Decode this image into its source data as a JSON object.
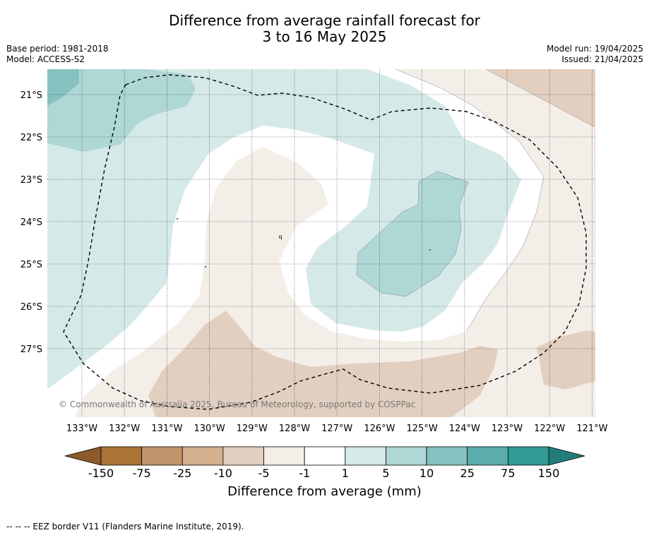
{
  "header": {
    "title_line1": "Difference from average rainfall forecast for",
    "title_line2": "3 to 16 May 2025",
    "base_period": "Base period: 1981-2018",
    "model": "Model: ACCESS-S2",
    "model_run": "Model run: 19/04/2025",
    "issued": "Issued: 21/04/2025"
  },
  "map": {
    "longitude_labels": [
      "133°W",
      "132°W",
      "131°W",
      "130°W",
      "129°W",
      "128°W",
      "127°W",
      "126°W",
      "125°W",
      "124°W",
      "123°W",
      "122°W",
      "121°W"
    ],
    "latitude_labels": [
      "21°S",
      "22°S",
      "23°S",
      "24°S",
      "25°S",
      "26°S",
      "27°S"
    ],
    "copyright": "© Commonwealth of Australia 2025, Bureau of Meteorology, supported by COSPPac",
    "feature_label": "q"
  },
  "colorbar": {
    "tick_labels": [
      "-150",
      "-75",
      "-25",
      "-10",
      "-5",
      "-1",
      "1",
      "5",
      "10",
      "25",
      "75",
      "150"
    ],
    "colors": [
      "#ab7436",
      "#c0946a",
      "#d4b08e",
      "#e3cfbf",
      "#f4eee9",
      "#ffffff",
      "#d5eae8",
      "#aed7d5",
      "#85c2bf",
      "#5aadab",
      "#319a97"
    ],
    "extend_low_color": "#8c5a2b",
    "extend_high_color": "#217d7a",
    "label": "Difference from average (mm)"
  },
  "footnote": "--  --  -- EEZ border V11 (Flanders Marine Institute, 2019)."
}
